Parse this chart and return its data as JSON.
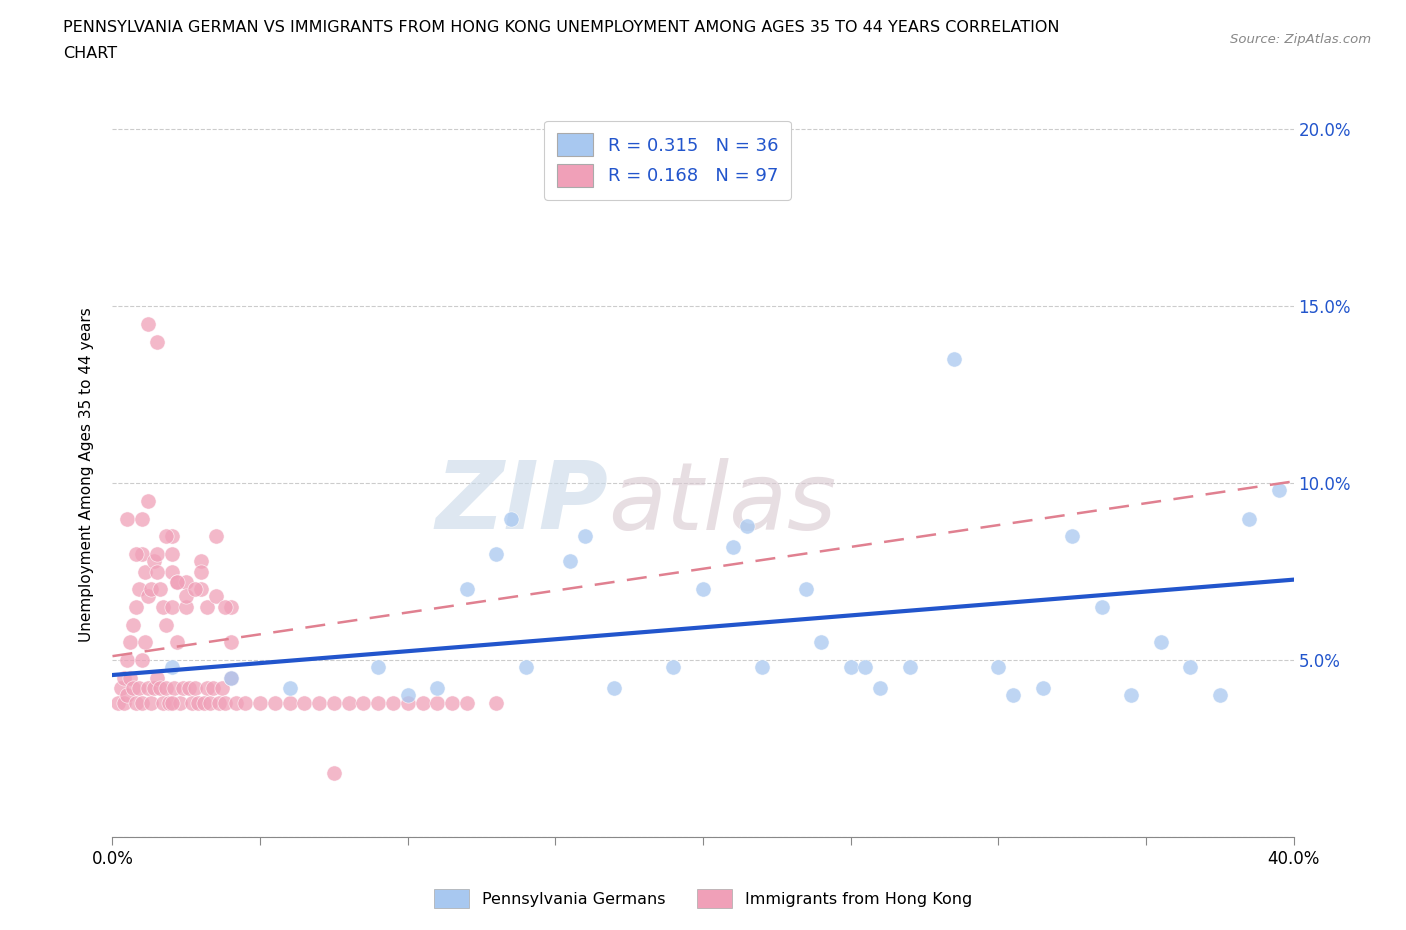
{
  "title_line1": "PENNSYLVANIA GERMAN VS IMMIGRANTS FROM HONG KONG UNEMPLOYMENT AMONG AGES 35 TO 44 YEARS CORRELATION",
  "title_line2": "CHART",
  "source_text": "Source: ZipAtlas.com",
  "ylabel": "Unemployment Among Ages 35 to 44 years",
  "xlim": [
    0.0,
    0.4
  ],
  "ylim": [
    0.0,
    0.205
  ],
  "xtick_vals": [
    0.0,
    0.05,
    0.1,
    0.15,
    0.2,
    0.25,
    0.3,
    0.35,
    0.4
  ],
  "ytick_vals": [
    0.0,
    0.05,
    0.1,
    0.15,
    0.2
  ],
  "yticklabels_right": [
    "",
    "5.0%",
    "10.0%",
    "15.0%",
    "20.0%"
  ],
  "blue_fill": "#a8c8f0",
  "pink_fill": "#f0a0b8",
  "blue_line": "#2255cc",
  "pink_dash_line": "#e08090",
  "label_color": "#2255cc",
  "grid_color": "#cccccc",
  "R_blue": 0.315,
  "N_blue": 36,
  "R_pink": 0.168,
  "N_pink": 97,
  "legend_label_blue": "Pennsylvania Germans",
  "legend_label_pink": "Immigrants from Hong Kong",
  "watermark_zip": "ZIP",
  "watermark_atlas": "atlas",
  "blue_scatter_x": [
    0.02,
    0.04,
    0.06,
    0.09,
    0.1,
    0.11,
    0.12,
    0.13,
    0.135,
    0.14,
    0.155,
    0.16,
    0.17,
    0.19,
    0.2,
    0.21,
    0.215,
    0.22,
    0.235,
    0.24,
    0.25,
    0.255,
    0.26,
    0.27,
    0.285,
    0.3,
    0.305,
    0.315,
    0.325,
    0.335,
    0.345,
    0.355,
    0.365,
    0.375,
    0.385,
    0.395
  ],
  "blue_scatter_y": [
    0.048,
    0.045,
    0.042,
    0.048,
    0.04,
    0.042,
    0.07,
    0.08,
    0.09,
    0.048,
    0.078,
    0.085,
    0.042,
    0.048,
    0.07,
    0.082,
    0.088,
    0.048,
    0.07,
    0.055,
    0.048,
    0.048,
    0.042,
    0.048,
    0.135,
    0.048,
    0.04,
    0.042,
    0.085,
    0.065,
    0.04,
    0.055,
    0.048,
    0.04,
    0.09,
    0.098
  ],
  "pink_scatter_x": [
    0.002,
    0.003,
    0.004,
    0.004,
    0.005,
    0.005,
    0.006,
    0.006,
    0.007,
    0.007,
    0.008,
    0.008,
    0.009,
    0.009,
    0.01,
    0.01,
    0.01,
    0.011,
    0.011,
    0.012,
    0.012,
    0.013,
    0.013,
    0.014,
    0.014,
    0.015,
    0.015,
    0.016,
    0.016,
    0.017,
    0.017,
    0.018,
    0.018,
    0.019,
    0.02,
    0.02,
    0.02,
    0.021,
    0.022,
    0.022,
    0.023,
    0.024,
    0.025,
    0.025,
    0.026,
    0.027,
    0.028,
    0.029,
    0.03,
    0.03,
    0.031,
    0.032,
    0.033,
    0.034,
    0.035,
    0.036,
    0.037,
    0.038,
    0.04,
    0.04,
    0.042,
    0.045,
    0.05,
    0.055,
    0.06,
    0.065,
    0.07,
    0.075,
    0.08,
    0.085,
    0.09,
    0.095,
    0.1,
    0.105,
    0.11,
    0.115,
    0.12,
    0.13,
    0.005,
    0.008,
    0.01,
    0.012,
    0.015,
    0.018,
    0.02,
    0.022,
    0.025,
    0.028,
    0.03,
    0.032,
    0.035,
    0.038,
    0.04,
    0.012,
    0.015,
    0.02,
    0.075
  ],
  "pink_scatter_y": [
    0.038,
    0.042,
    0.038,
    0.045,
    0.04,
    0.05,
    0.045,
    0.055,
    0.042,
    0.06,
    0.038,
    0.065,
    0.042,
    0.07,
    0.038,
    0.05,
    0.08,
    0.055,
    0.075,
    0.042,
    0.068,
    0.038,
    0.07,
    0.042,
    0.078,
    0.045,
    0.08,
    0.042,
    0.07,
    0.038,
    0.065,
    0.042,
    0.06,
    0.038,
    0.065,
    0.075,
    0.085,
    0.042,
    0.055,
    0.072,
    0.038,
    0.042,
    0.065,
    0.072,
    0.042,
    0.038,
    0.042,
    0.038,
    0.07,
    0.078,
    0.038,
    0.042,
    0.038,
    0.042,
    0.085,
    0.038,
    0.042,
    0.038,
    0.045,
    0.065,
    0.038,
    0.038,
    0.038,
    0.038,
    0.038,
    0.038,
    0.038,
    0.038,
    0.038,
    0.038,
    0.038,
    0.038,
    0.038,
    0.038,
    0.038,
    0.038,
    0.038,
    0.038,
    0.09,
    0.08,
    0.09,
    0.095,
    0.075,
    0.085,
    0.08,
    0.072,
    0.068,
    0.07,
    0.075,
    0.065,
    0.068,
    0.065,
    0.055,
    0.145,
    0.14,
    0.038,
    0.018
  ]
}
